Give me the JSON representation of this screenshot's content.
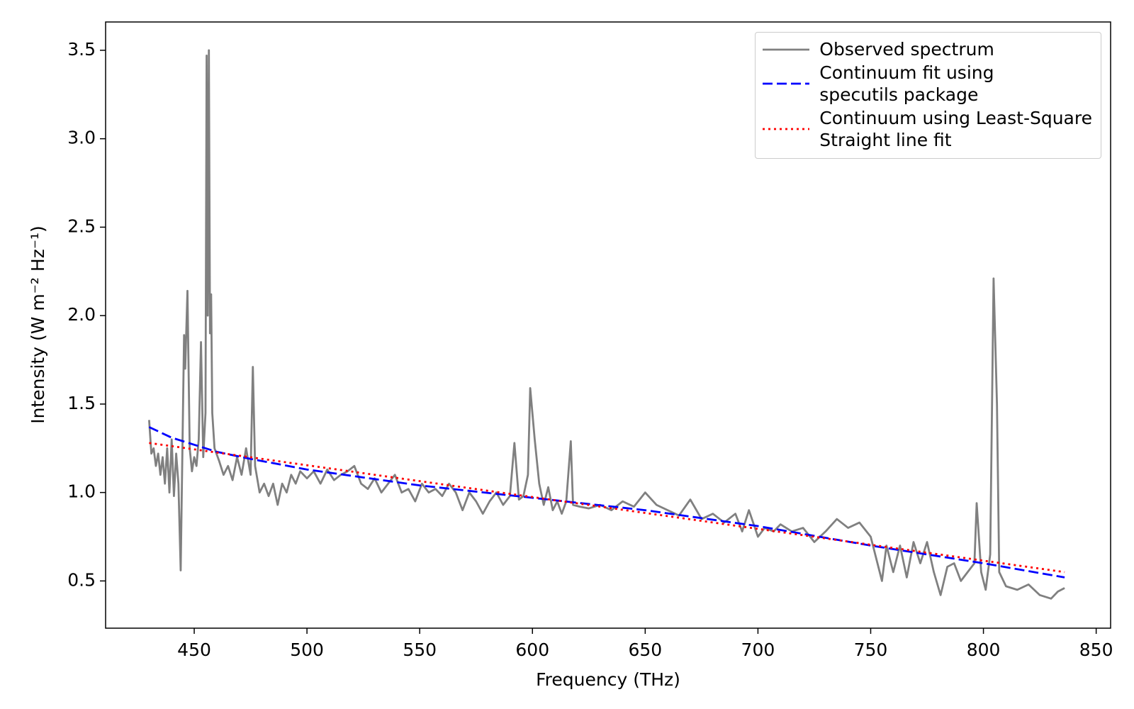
{
  "chart_data": {
    "type": "line",
    "xlabel": "Frequency (THz)",
    "ylabel": "Intensity (W m⁻² Hz⁻¹)",
    "xlim": [
      410.7,
      856.4
    ],
    "ylim": [
      0.233,
      3.66
    ],
    "xticks": [
      450,
      500,
      550,
      600,
      650,
      700,
      750,
      800,
      850
    ],
    "yticks": [
      0.5,
      {
        "value": 1.0,
        "label": "1.0"
      },
      1.5,
      {
        "value": 2.0,
        "label": "2.0"
      },
      2.5,
      {
        "value": 3.0,
        "label": "3.0"
      },
      3.5
    ],
    "legend": "upper right",
    "series": [
      {
        "name": "Observed spectrum",
        "color": "#808080",
        "linestyle": "solid",
        "x": [
          430,
          431,
          432,
          433,
          434,
          435,
          436,
          437,
          438,
          439,
          440,
          441,
          442,
          443,
          444,
          445,
          445.5,
          446,
          447,
          448,
          449,
          450,
          451,
          452,
          453,
          454,
          455,
          455.5,
          456,
          456.5,
          457,
          457.5,
          458,
          459,
          461,
          463,
          465,
          467,
          469,
          471,
          473,
          475,
          476,
          477,
          479,
          481,
          483,
          485,
          487,
          489,
          491,
          493,
          495,
          497,
          500,
          503,
          506,
          509,
          512,
          515,
          518,
          521,
          524,
          527,
          530,
          533,
          536,
          539,
          542,
          545,
          548,
          551,
          554,
          557,
          560,
          563,
          566,
          569,
          572,
          575,
          578,
          581,
          584,
          587,
          590,
          592,
          594,
          596,
          598,
          599,
          601,
          603,
          605,
          607,
          609,
          611,
          613,
          615,
          617,
          618,
          621,
          625,
          630,
          635,
          640,
          645,
          650,
          655,
          660,
          665,
          670,
          675,
          680,
          685,
          690,
          693,
          696,
          700,
          703,
          707,
          710,
          715,
          720,
          725,
          730,
          735,
          740,
          745,
          750,
          755,
          757,
          760,
          763,
          766,
          769,
          772,
          775,
          778,
          781,
          784,
          787,
          790,
          793,
          796,
          797,
          799,
          801,
          803,
          804.5,
          806,
          807,
          810,
          815,
          820,
          825,
          830,
          833,
          836
        ],
        "values": [
          1.41,
          1.22,
          1.25,
          1.15,
          1.22,
          1.1,
          1.2,
          1.05,
          1.25,
          1.0,
          1.3,
          0.98,
          1.22,
          1.05,
          0.56,
          1.45,
          1.89,
          1.7,
          2.14,
          1.25,
          1.12,
          1.2,
          1.15,
          1.3,
          1.85,
          1.2,
          1.45,
          3.47,
          2.0,
          3.5,
          1.9,
          2.12,
          1.45,
          1.25,
          1.18,
          1.1,
          1.15,
          1.07,
          1.2,
          1.1,
          1.25,
          1.1,
          1.71,
          1.15,
          1.0,
          1.05,
          0.98,
          1.05,
          0.93,
          1.05,
          1.0,
          1.1,
          1.05,
          1.12,
          1.08,
          1.12,
          1.05,
          1.13,
          1.07,
          1.1,
          1.12,
          1.15,
          1.05,
          1.02,
          1.08,
          1.0,
          1.05,
          1.1,
          1.0,
          1.02,
          0.95,
          1.05,
          1.0,
          1.02,
          0.98,
          1.05,
          1.0,
          0.9,
          1.0,
          0.95,
          0.88,
          0.95,
          1.0,
          0.93,
          0.98,
          1.28,
          0.96,
          0.98,
          1.1,
          1.59,
          1.3,
          1.05,
          0.93,
          1.03,
          0.9,
          0.95,
          0.88,
          0.95,
          1.29,
          0.93,
          0.92,
          0.91,
          0.93,
          0.9,
          0.95,
          0.92,
          1.0,
          0.93,
          0.9,
          0.87,
          0.96,
          0.85,
          0.88,
          0.83,
          0.88,
          0.78,
          0.9,
          0.75,
          0.8,
          0.78,
          0.82,
          0.78,
          0.8,
          0.72,
          0.78,
          0.85,
          0.8,
          0.83,
          0.75,
          0.5,
          0.7,
          0.55,
          0.7,
          0.52,
          0.72,
          0.6,
          0.72,
          0.55,
          0.42,
          0.58,
          0.6,
          0.5,
          0.55,
          0.6,
          0.94,
          0.55,
          0.45,
          0.65,
          2.21,
          1.5,
          0.55,
          0.47,
          0.45,
          0.48,
          0.42,
          0.4,
          0.44,
          0.46
        ]
      },
      {
        "name": "Continuum fit using\nspecutils package",
        "color": "#0000ff",
        "linestyle": "dashed",
        "x": [
          430,
          440,
          450,
          460,
          475,
          500,
          550,
          600,
          650,
          700,
          750,
          800,
          836
        ],
        "values": [
          1.37,
          1.31,
          1.27,
          1.23,
          1.19,
          1.13,
          1.04,
          0.97,
          0.9,
          0.81,
          0.7,
          0.6,
          0.52
        ]
      },
      {
        "name": "Continuum using Least-Square\nStraight line fit",
        "color": "#ff0000",
        "linestyle": "dotted",
        "x": [
          430,
          836
        ],
        "values": [
          1.28,
          0.55
        ]
      }
    ]
  }
}
